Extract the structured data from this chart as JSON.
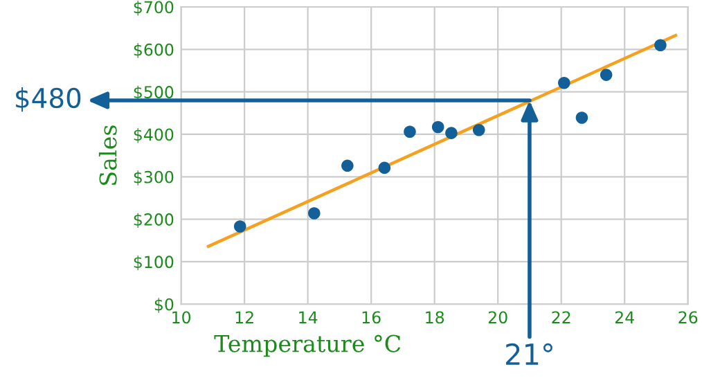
{
  "chart_data": {
    "type": "scatter",
    "xlabel": "Temperature °C",
    "ylabel": "Sales",
    "xlim": [
      10,
      26
    ],
    "xticks": [
      10,
      12,
      14,
      16,
      18,
      20,
      22,
      24,
      26
    ],
    "ylim": [
      0,
      700
    ],
    "yticks": [
      {
        "value": 0,
        "label": "$0"
      },
      {
        "value": 100,
        "label": "$100"
      },
      {
        "value": 200,
        "label": "$200"
      },
      {
        "value": 300,
        "label": "$300"
      },
      {
        "value": 400,
        "label": "$400"
      },
      {
        "value": 500,
        "label": "$500"
      },
      {
        "value": 600,
        "label": "$600"
      },
      {
        "value": 700,
        "label": "$700"
      }
    ],
    "grid": true,
    "series": [
      {
        "type": "line",
        "marker": "none",
        "color": "#f5a01f",
        "x": [
          10.86,
          25.61
        ],
        "values": [
          136,
          633
        ]
      },
      {
        "marker": "circle",
        "color": "#135f98",
        "x": [
          11.86,
          14.2,
          15.25,
          16.42,
          17.22,
          18.11,
          18.53,
          19.4,
          22.09,
          22.65,
          23.42,
          25.13
        ],
        "values": [
          183,
          214,
          326,
          321,
          406,
          417,
          403,
          410,
          521,
          439,
          540,
          610
        ]
      }
    ],
    "annotations": [
      {
        "text": "$480",
        "x": 21,
        "y": 480
      },
      {
        "text": "21°",
        "x": 21,
        "y": 480
      }
    ]
  }
}
